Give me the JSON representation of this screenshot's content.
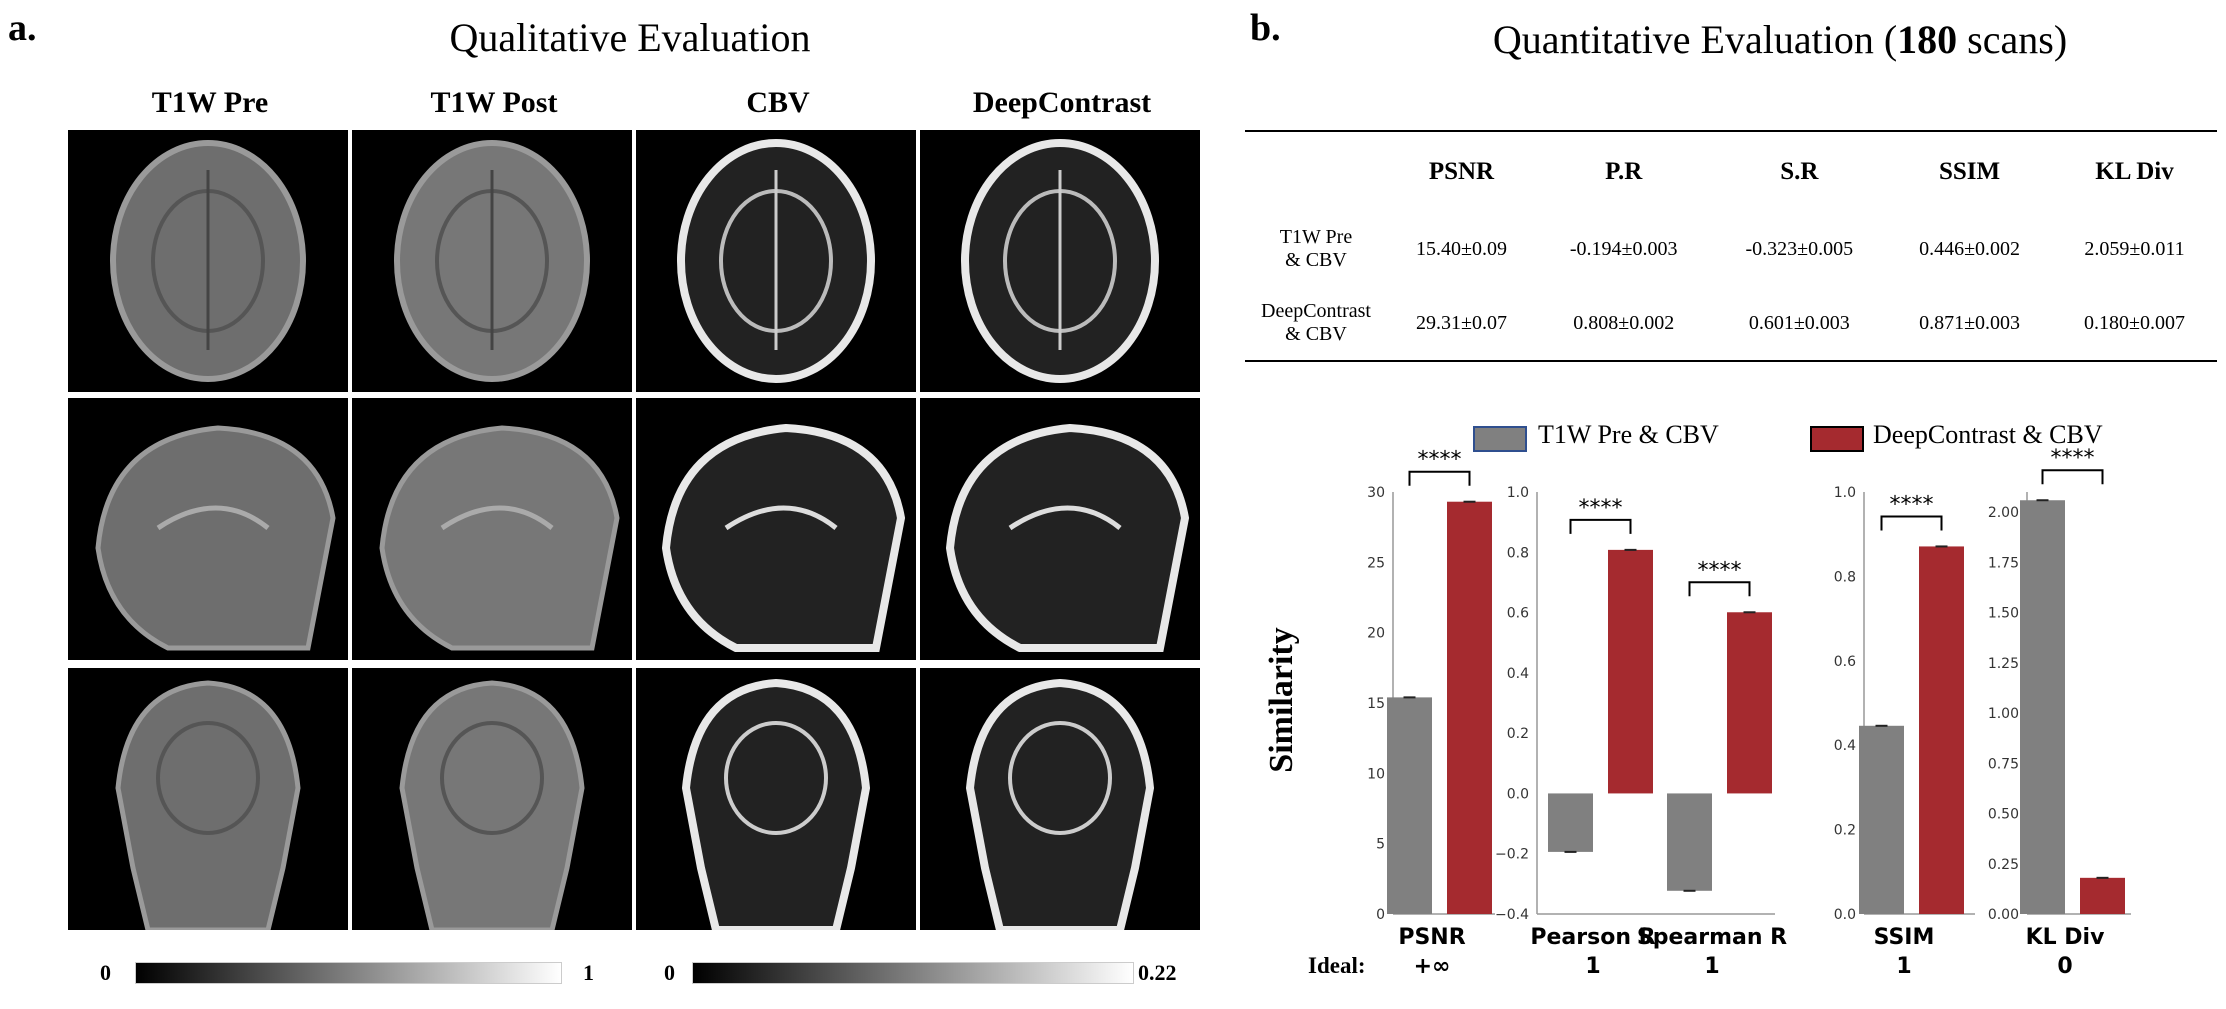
{
  "panel_a": {
    "label": "a.",
    "title": "Qualitative Evaluation",
    "columns": [
      "T1W Pre",
      "T1W Post",
      "CBV",
      "DeepContrast"
    ],
    "colorbar_left": {
      "min": "0",
      "max": "1"
    },
    "colorbar_right": {
      "min": "0",
      "max": "0.22"
    }
  },
  "panel_b": {
    "label": "b.",
    "title_pre": "Quantitative Evaluation (",
    "title_bold": "180",
    "title_post": " scans)",
    "table": {
      "headers": [
        "",
        "PSNR",
        "P.R",
        "S.R",
        "SSIM",
        "KL Div"
      ],
      "rows": [
        {
          "label1": "T1W Pre",
          "label2": "& CBV",
          "values": [
            "15.40±0.09",
            "-0.194±0.003",
            "-0.323±0.005",
            "0.446±0.002",
            "2.059±0.011"
          ]
        },
        {
          "label1": "DeepContrast",
          "label2": "& CBV",
          "values": [
            "29.31±0.07",
            "0.808±0.002",
            "0.601±0.003",
            "0.871±0.003",
            "0.180±0.007"
          ]
        }
      ]
    },
    "legend": [
      "T1W Pre & CBV",
      "DeepContrast & CBV"
    ],
    "ylabel": "Similarity",
    "ideal_label": "Ideal:",
    "significance": "****"
  },
  "colors": {
    "gray_series": "#808080",
    "red_series": "#a52a2f",
    "legend_gray_border": "#2f4f8f"
  },
  "chart_data": [
    {
      "type": "bar",
      "categories": [
        "PSNR"
      ],
      "series": [
        {
          "name": "T1W Pre & CBV",
          "values": [
            15.4
          ]
        },
        {
          "name": "DeepContrast & CBV",
          "values": [
            29.31
          ]
        }
      ],
      "ylim": [
        0,
        30
      ],
      "yticks": [
        "0",
        "5",
        "10",
        "15",
        "20",
        "25",
        "30"
      ],
      "xlabel": "PSNR",
      "ideal": "+∞"
    },
    {
      "type": "bar",
      "categories": [
        "Pearson R",
        "Spearman R"
      ],
      "series": [
        {
          "name": "T1W Pre & CBV",
          "values": [
            -0.194,
            -0.323
          ]
        },
        {
          "name": "DeepContrast & CBV",
          "values": [
            0.808,
            0.601
          ]
        }
      ],
      "ylim": [
        -0.4,
        1.0
      ],
      "yticks": [
        "−0.4",
        "−0.2",
        "0.0",
        "0.2",
        "0.4",
        "0.6",
        "0.8",
        "1.0"
      ],
      "xlabels": [
        "Pearson R",
        "Spearman R"
      ],
      "ideal": [
        "1",
        "1"
      ]
    },
    {
      "type": "bar",
      "categories": [
        "SSIM"
      ],
      "series": [
        {
          "name": "T1W Pre & CBV",
          "values": [
            0.446
          ]
        },
        {
          "name": "DeepContrast & CBV",
          "values": [
            0.871
          ]
        }
      ],
      "ylim": [
        0,
        1.0
      ],
      "yticks": [
        "0.0",
        "0.2",
        "0.4",
        "0.6",
        "0.8",
        "1.0"
      ],
      "xlabel": "SSIM",
      "ideal": "1"
    },
    {
      "type": "bar",
      "categories": [
        "KL Div"
      ],
      "series": [
        {
          "name": "T1W Pre & CBV",
          "values": [
            2.059
          ]
        },
        {
          "name": "DeepContrast & CBV",
          "values": [
            0.18
          ]
        }
      ],
      "ylim": [
        0,
        2.1
      ],
      "yticks": [
        "0.00",
        "0.25",
        "0.50",
        "0.75",
        "1.00",
        "1.25",
        "1.50",
        "1.75",
        "2.00"
      ],
      "xlabel": "KL Div",
      "ideal": "0"
    }
  ]
}
